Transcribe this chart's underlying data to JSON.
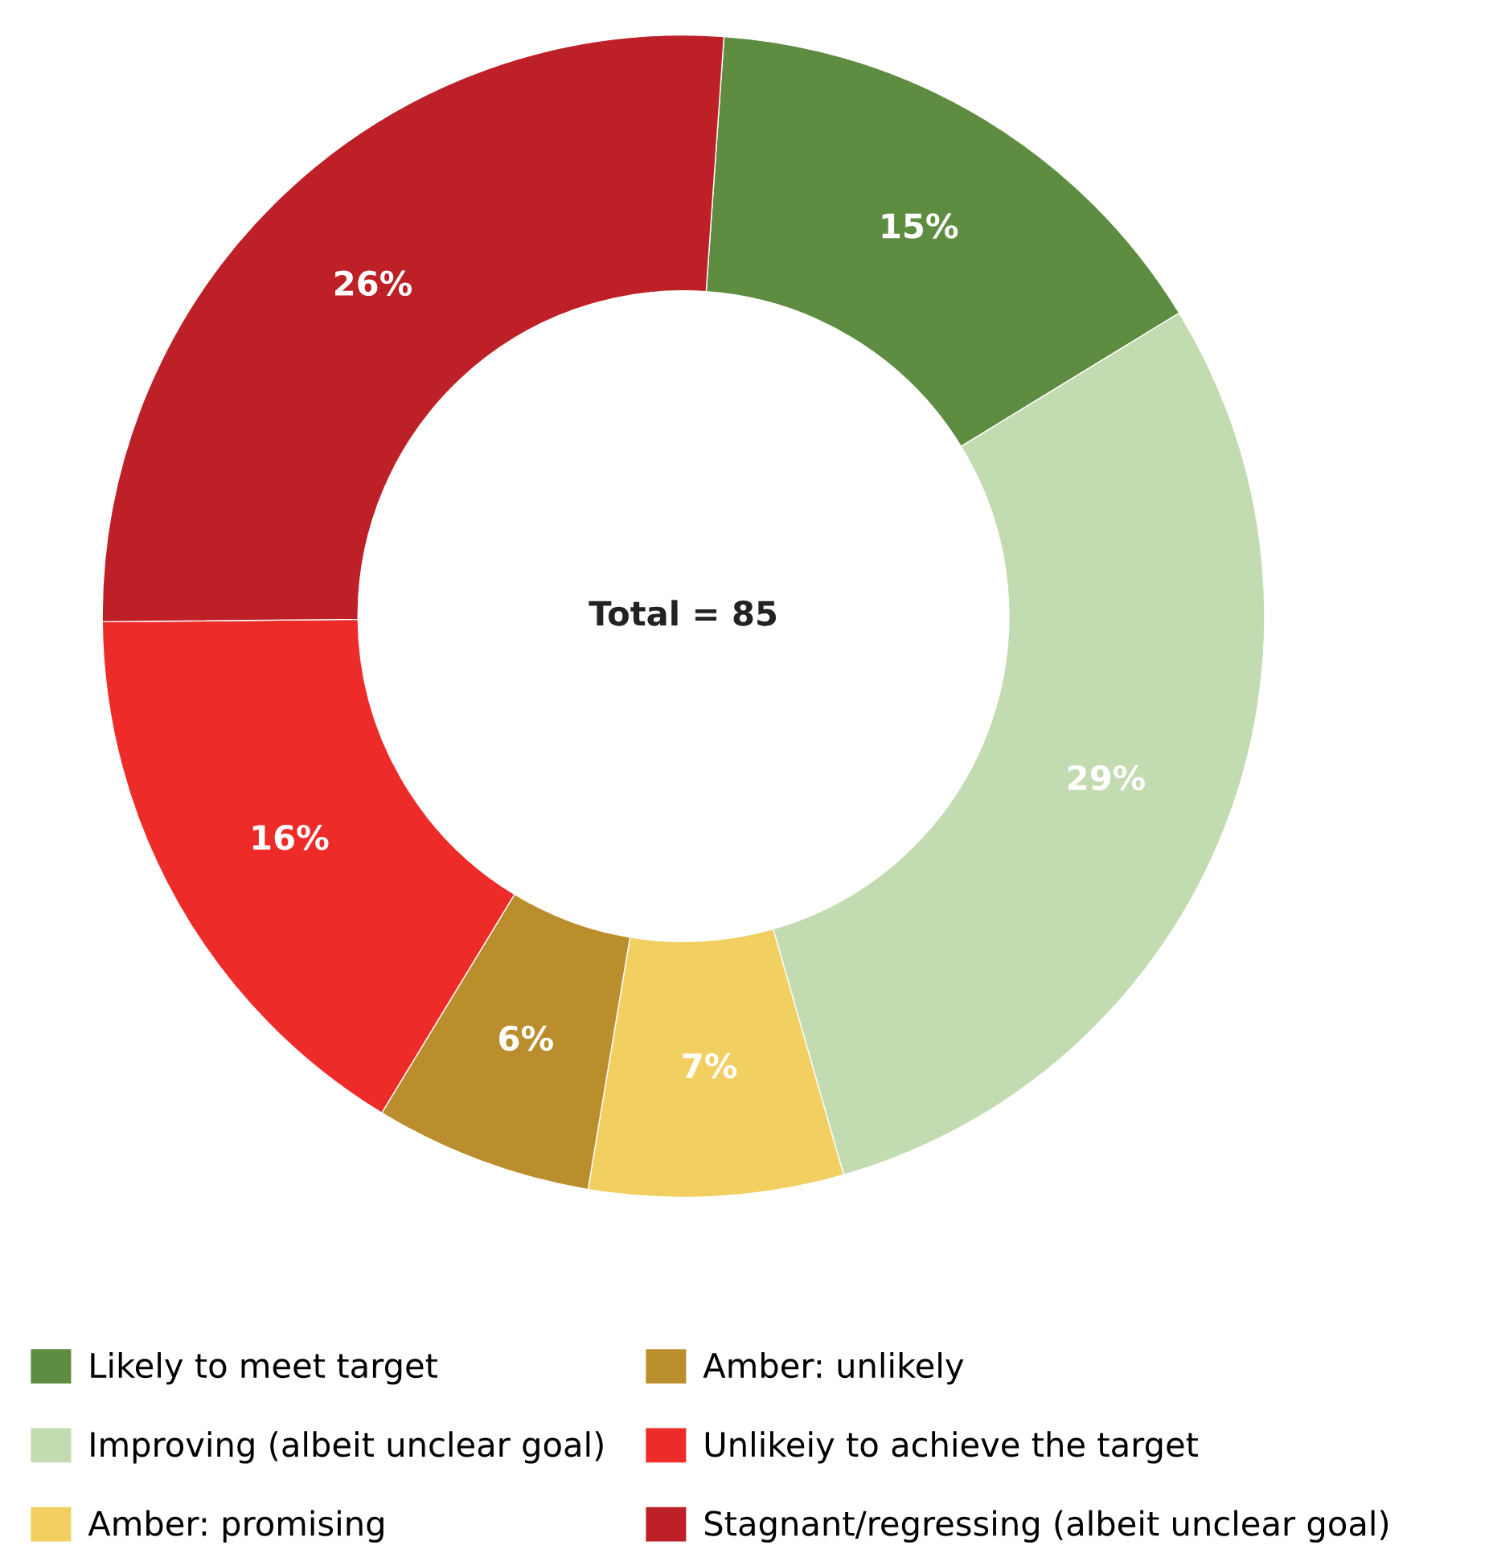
{
  "chart_data": {
    "type": "donut",
    "categories": [
      "Likely to meet target",
      "Improving (albeit unclear goal)",
      "Amber: promising",
      "Amber: unlikely",
      "Unlikeiy to achieve the target",
      "Stagnant/regressing (albeit unclear goal)"
    ],
    "values": [
      15,
      29,
      7,
      6,
      16,
      26
    ],
    "value_labels": [
      "15%",
      "29%",
      "7%",
      "6%",
      "16%",
      "26%"
    ],
    "colors": [
      "#5e8c41",
      "#c2dbb0",
      "#f2cf61",
      "#bb8e2d",
      "#ed2c2a",
      "#bd2026"
    ],
    "annotations": [
      "Total = 85"
    ],
    "legend": "bottom"
  }
}
